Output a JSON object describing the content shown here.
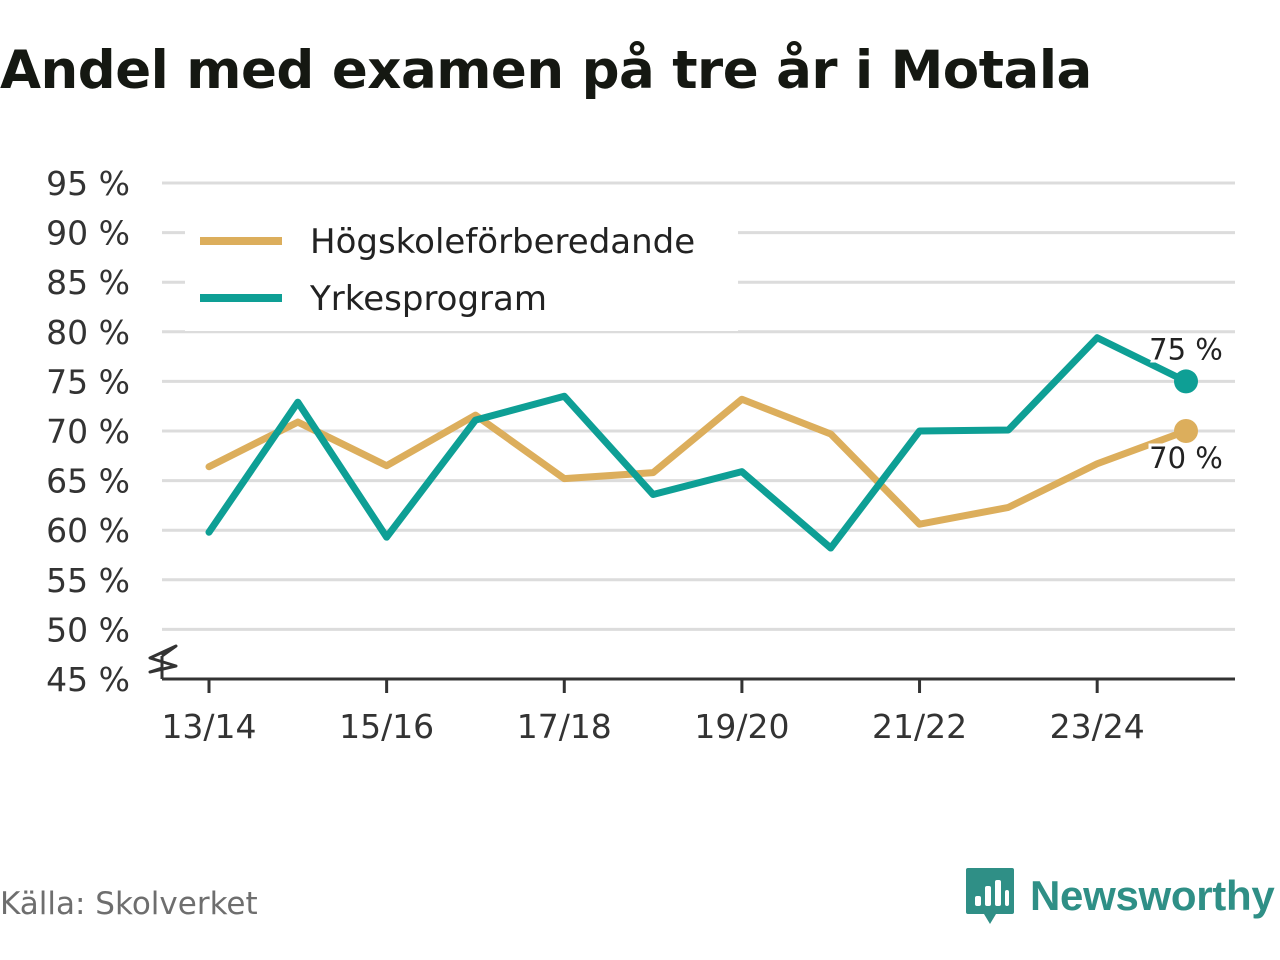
{
  "chart_data": {
    "type": "line",
    "title": "Andel med examen på tre år i Motala",
    "categories": [
      "13/14",
      "14/15",
      "15/16",
      "16/17",
      "17/18",
      "18/19",
      "19/20",
      "20/21",
      "21/22",
      "22/23",
      "23/24",
      "24/25"
    ],
    "x_tick_labels": [
      "13/14",
      "15/16",
      "17/18",
      "19/20",
      "21/22",
      "23/24"
    ],
    "y_ticks": [
      45,
      50,
      55,
      60,
      65,
      70,
      75,
      80,
      85,
      90,
      95
    ],
    "y_tick_suffix": " %",
    "ylim": [
      45,
      95
    ],
    "axis_break": true,
    "legend_position": "top-left",
    "series": [
      {
        "name": "Högskoleförberedande",
        "color": "#dcae5c",
        "values": [
          66.4,
          70.9,
          66.5,
          71.6,
          65.2,
          65.8,
          73.2,
          69.7,
          60.6,
          62.3,
          66.7,
          70.0
        ],
        "end_label": "70 %"
      },
      {
        "name": "Yrkesprogram",
        "color": "#0e9f95",
        "values": [
          59.8,
          72.9,
          59.3,
          71.1,
          73.5,
          63.6,
          65.9,
          58.2,
          70.0,
          70.1,
          79.4,
          75.0
        ],
        "end_label": "75 %"
      }
    ]
  },
  "footer": {
    "source": "Källa: Skolverket",
    "brand": "Newsworthy",
    "brand_color": "#2f8f86"
  }
}
